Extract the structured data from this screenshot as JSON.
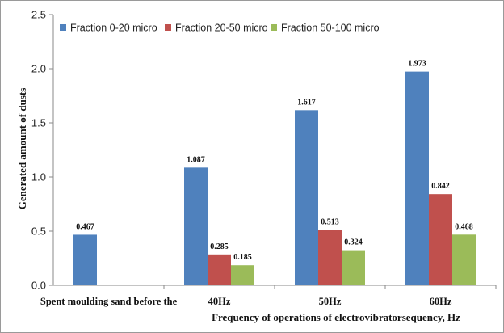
{
  "chart_data": {
    "type": "bar",
    "title": "",
    "categories": [
      "Spent moulding sand before the",
      "40Hz",
      "50Hz",
      "60Hz"
    ],
    "series": [
      {
        "name": "Fraction 0-20 micro",
        "color": "#4F81BD",
        "values": [
          0.467,
          1.087,
          1.617,
          1.973
        ],
        "labels": [
          "0.467",
          "1.087",
          "1.617",
          "1.973"
        ]
      },
      {
        "name": "Fraction 20-50 micro",
        "color": "#C0504D",
        "values": [
          null,
          0.285,
          0.513,
          0.842
        ],
        "labels": [
          "",
          "0.285",
          "0.513",
          "0.842"
        ]
      },
      {
        "name": "Fraction 50-100 micro",
        "color": "#9BBB59",
        "values": [
          null,
          0.185,
          0.324,
          0.468
        ],
        "labels": [
          "",
          "0.185",
          "0.324",
          "0.468"
        ]
      }
    ],
    "xlabel": "Frequency of operations of electrovibratorsequency, Hz",
    "ylabel": "Generated amount of dusts",
    "ylim": [
      0,
      2.5
    ],
    "yticks": [
      "0.0",
      "0.5",
      "1.0",
      "1.5",
      "2.0",
      "2.5"
    ],
    "grid": false,
    "legend_position": "top"
  }
}
